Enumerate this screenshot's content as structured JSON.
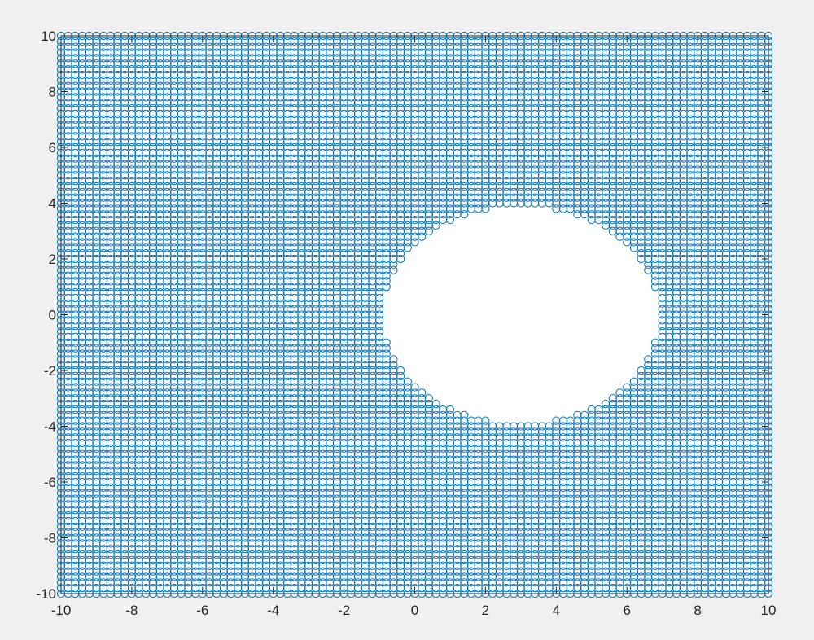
{
  "chart_data": {
    "type": "scatter",
    "title": "",
    "xlabel": "",
    "ylabel": "",
    "xlim": [
      -10,
      10
    ],
    "ylim": [
      -10,
      10
    ],
    "xticks": [
      -10,
      -8,
      -6,
      -4,
      -2,
      0,
      2,
      4,
      6,
      8,
      10
    ],
    "yticks": [
      -10,
      -8,
      -6,
      -4,
      -2,
      0,
      2,
      4,
      6,
      8,
      10
    ],
    "grid": false,
    "legend": "none",
    "marker": "open-circle",
    "series": [
      {
        "color": "#0072bd",
        "grid_points": {
          "x_start": -10,
          "x_end": 10,
          "x_step": 0.2,
          "y_start": -10,
          "y_end": 10,
          "y_step": 0.2
        },
        "excluded_region": {
          "shape": "circle",
          "center": [
            3,
            0
          ],
          "radius": 3.9
        }
      }
    ]
  }
}
